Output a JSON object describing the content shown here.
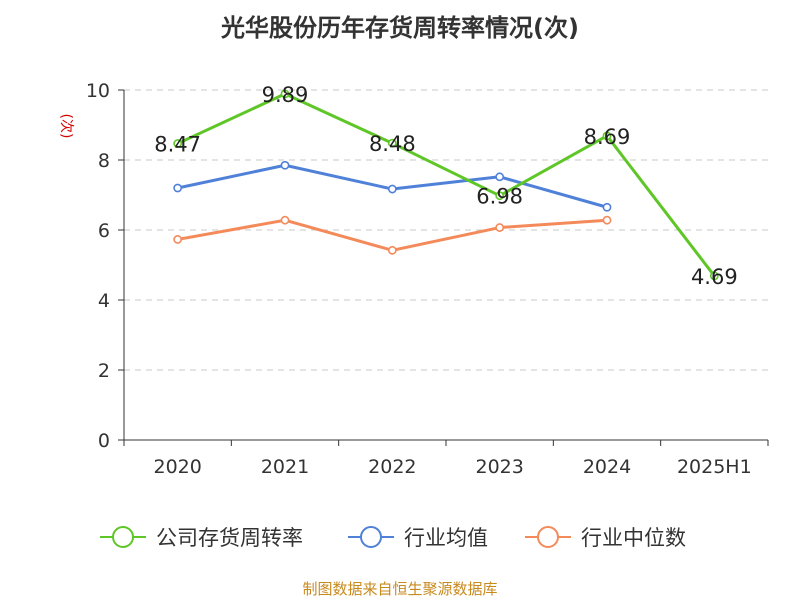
{
  "title": "光华股份历年存货周转率情况(次)",
  "source": "制图数据来自恒生聚源数据库",
  "colors": {
    "company": "#5fc628",
    "industry_avg": "#4f81d9",
    "industry_median": "#f48a5a",
    "ylabel": "#d40000",
    "source": "#c88a1e"
  },
  "chart_data": {
    "type": "line",
    "categories": [
      "2020",
      "2021",
      "2022",
      "2023",
      "2024",
      "2025H1"
    ],
    "ylabel": "(次)",
    "ylim": [
      0,
      10
    ],
    "yticks": [
      0,
      2,
      4,
      6,
      8,
      10
    ],
    "grid": true,
    "legend_position": "bottom",
    "series": [
      {
        "name": "公司存货周转率",
        "values": [
          8.47,
          9.89,
          8.48,
          6.98,
          8.69,
          4.69
        ],
        "labels": [
          "8.47",
          "9.89",
          "8.48",
          "6.98",
          "8.69",
          "4.69"
        ]
      },
      {
        "name": "行业均值",
        "values": [
          7.2,
          7.85,
          7.17,
          7.52,
          6.65,
          null
        ]
      },
      {
        "name": "行业中位数",
        "values": [
          5.73,
          6.28,
          5.42,
          6.07,
          6.28,
          null
        ]
      }
    ]
  }
}
